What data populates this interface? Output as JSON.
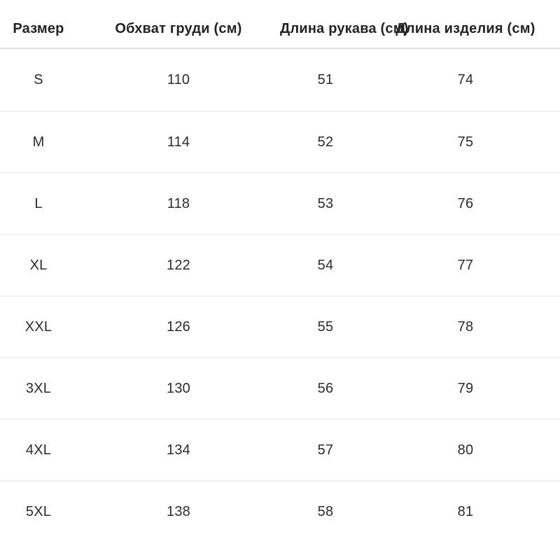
{
  "table": {
    "columns": {
      "size": "Размер",
      "chest": "Обхват груди (см)",
      "sleeve": "Длина рукава (см)",
      "item_length": "Длина изделия (см)"
    },
    "rows": [
      {
        "size": "S",
        "chest": "110",
        "sleeve": "51",
        "item_length": "74"
      },
      {
        "size": "M",
        "chest": "114",
        "sleeve": "52",
        "item_length": "75"
      },
      {
        "size": "L",
        "chest": "118",
        "sleeve": "53",
        "item_length": "76"
      },
      {
        "size": "XL",
        "chest": "122",
        "sleeve": "54",
        "item_length": "77"
      },
      {
        "size": "XXL",
        "chest": "126",
        "sleeve": "55",
        "item_length": "78"
      },
      {
        "size": "3XL",
        "chest": "130",
        "sleeve": "56",
        "item_length": "79"
      },
      {
        "size": "4XL",
        "chest": "134",
        "sleeve": "57",
        "item_length": "80"
      },
      {
        "size": "5XL",
        "chest": "138",
        "sleeve": "58",
        "item_length": "81"
      }
    ]
  },
  "chart_data": {
    "type": "table",
    "title": "",
    "columns": [
      "Размер",
      "Обхват груди (см)",
      "Длина рукава (см)",
      "Длина изделия (см)"
    ],
    "rows": [
      [
        "S",
        110,
        51,
        74
      ],
      [
        "M",
        114,
        52,
        75
      ],
      [
        "L",
        118,
        53,
        76
      ],
      [
        "XL",
        122,
        54,
        77
      ],
      [
        "XXL",
        126,
        55,
        78
      ],
      [
        "3XL",
        130,
        56,
        79
      ],
      [
        "4XL",
        134,
        57,
        80
      ],
      [
        "5XL",
        138,
        58,
        81
      ]
    ]
  },
  "colors": {
    "background": "#ffffff",
    "text": "#2b2c30",
    "header_text": "#222327",
    "header_divider": "#e2e2e2",
    "row_divider": "#f2f2f2"
  }
}
